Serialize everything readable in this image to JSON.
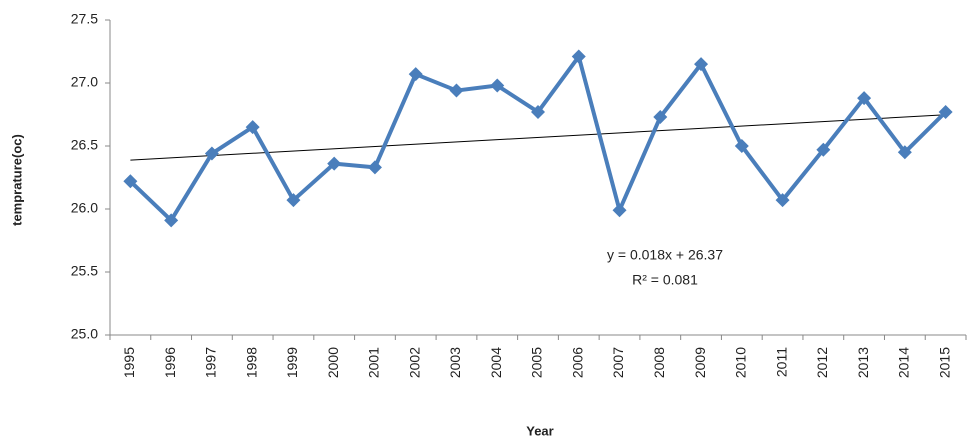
{
  "chart_data": {
    "type": "line",
    "x_label": "Year",
    "y_label": "temprature(oc)",
    "categories": [
      "1995",
      "1996",
      "1997",
      "1998",
      "1999",
      "2000",
      "2001",
      "2002",
      "2003",
      "2004",
      "2005",
      "2006",
      "2007",
      "2008",
      "2009",
      "2010",
      "2011",
      "2012",
      "2013",
      "2014",
      "2015"
    ],
    "series": [
      {
        "color": "#4a7ebb",
        "values": [
          26.22,
          25.91,
          26.44,
          26.65,
          26.07,
          26.36,
          26.33,
          27.07,
          26.94,
          26.98,
          26.77,
          27.21,
          25.99,
          26.73,
          27.15,
          26.5,
          26.07,
          26.47,
          26.88,
          26.45,
          26.77
        ]
      }
    ],
    "ylim": [
      25,
      27.5
    ],
    "yticks": [
      {
        "value": 25,
        "label": "25.0"
      },
      25.5,
      {
        "value": 26,
        "label": "26.0"
      },
      26.5,
      {
        "value": 27,
        "label": "27.0"
      },
      27.5
    ],
    "grid": false,
    "trendline": {
      "equation": "y = 0.018x + 26.37",
      "r2_label": "R² = 0.081",
      "slope": 0.018,
      "intercept": 26.37,
      "color": "#000000"
    }
  }
}
